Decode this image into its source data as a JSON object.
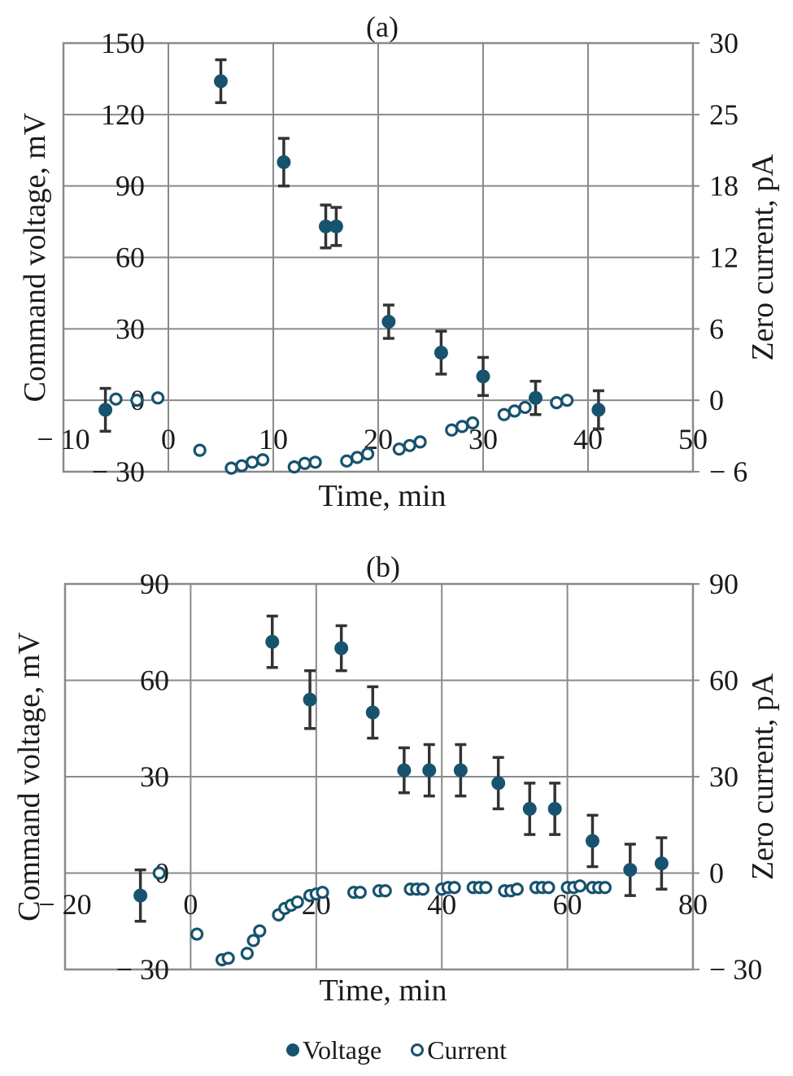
{
  "colors": {
    "voltage": "#17536e",
    "current": "#17536e",
    "grid": "#8a8a8a",
    "errorbar": "#333333"
  },
  "legend": {
    "voltage_label": "Voltage",
    "current_label": "Current"
  },
  "chart_data": [
    {
      "type": "scatter",
      "title": "(a)",
      "xlabel": "Time, min",
      "ylabel": "Command voltage, mV",
      "ylabel_right": "Zero current, pA",
      "xlim": [
        -10,
        50
      ],
      "ylim": [
        -30,
        150
      ],
      "x_ticks": [
        -10,
        0,
        10,
        20,
        30,
        40,
        50
      ],
      "x_tick_labels": [
        "− 10",
        "0",
        "10",
        "20",
        "30",
        "40",
        "50"
      ],
      "y_ticks": [
        150,
        120,
        90,
        60,
        30,
        0,
        -30
      ],
      "y_tick_labels": [
        "150",
        "120",
        "90",
        "60",
        "30",
        "0",
        "− 30"
      ],
      "y_right_tick_labels": [
        "30",
        "25",
        "18",
        "12",
        "6",
        "0",
        "− 6"
      ],
      "y_right_ticks": [
        30,
        25,
        18,
        12,
        6,
        0,
        -6
      ],
      "grid": true,
      "series": [
        {
          "name": "Voltage",
          "marker": "filled-circle",
          "x": [
            -6,
            5,
            11,
            15,
            16,
            21,
            26,
            30,
            35,
            41
          ],
          "y": [
            -4,
            134,
            100,
            73,
            73,
            33,
            20,
            10,
            1,
            -4
          ],
          "err": [
            9,
            9,
            10,
            9,
            8,
            7,
            9,
            8,
            7,
            8
          ]
        },
        {
          "name": "Current",
          "marker": "open-circle",
          "axis": "right",
          "x": [
            -5,
            -3,
            -1,
            3,
            6,
            7,
            8,
            9,
            12,
            13,
            14,
            17,
            18,
            19,
            22,
            23,
            24,
            27,
            28,
            29,
            32,
            33,
            34,
            37,
            38
          ],
          "y": [
            0.1,
            0.0,
            0.2,
            -4.2,
            -5.7,
            -5.5,
            -5.2,
            -5.0,
            -5.6,
            -5.3,
            -5.2,
            -5.1,
            -4.8,
            -4.5,
            -4.1,
            -3.8,
            -3.5,
            -2.5,
            -2.2,
            -1.9,
            -1.2,
            -0.9,
            -0.6,
            -0.2,
            0.0
          ]
        }
      ]
    },
    {
      "type": "scatter",
      "title": "(b)",
      "xlabel": "Time, min",
      "ylabel": "Command voltage, mV",
      "ylabel_right": "Zero current, pA",
      "xlim": [
        -20,
        80
      ],
      "ylim": [
        -30,
        90
      ],
      "x_ticks": [
        -20,
        0,
        20,
        40,
        60,
        80
      ],
      "x_tick_labels": [
        "− 20",
        "0",
        "20",
        "40",
        "60",
        "80"
      ],
      "y_ticks": [
        90,
        60,
        30,
        0,
        -30
      ],
      "y_tick_labels": [
        "90",
        "60",
        "30",
        "0",
        "− 30"
      ],
      "y_right_tick_labels": [
        "90",
        "60",
        "30",
        "0",
        "− 30"
      ],
      "y_right_ticks": [
        90,
        60,
        30,
        0,
        -30
      ],
      "grid": true,
      "series": [
        {
          "name": "Voltage",
          "marker": "filled-circle",
          "x": [
            -8,
            13,
            19,
            24,
            29,
            34,
            38,
            43,
            49,
            54,
            58,
            64,
            70,
            75
          ],
          "y": [
            -7,
            72,
            54,
            70,
            50,
            32,
            32,
            32,
            28,
            20,
            20,
            10,
            1,
            3
          ],
          "err": [
            8,
            8,
            9,
            7,
            8,
            7,
            8,
            8,
            8,
            8,
            8,
            8,
            8,
            8
          ]
        },
        {
          "name": "Current",
          "marker": "open-circle",
          "axis": "right",
          "x": [
            -5,
            1,
            5,
            6,
            9,
            10,
            11,
            14,
            15,
            16,
            17,
            19,
            20,
            21,
            26,
            27,
            30,
            31,
            35,
            36,
            37,
            40,
            41,
            42,
            45,
            46,
            47,
            50,
            51,
            52,
            55,
            56,
            57,
            60,
            61,
            62,
            64,
            65,
            66
          ],
          "y": [
            0,
            -19,
            -27,
            -26.5,
            -25,
            -21,
            -18,
            -13,
            -11,
            -10,
            -9,
            -7,
            -6.5,
            -6,
            -6,
            -6,
            -5.5,
            -5.5,
            -5,
            -5,
            -5,
            -5,
            -4.5,
            -4.5,
            -4.5,
            -4.5,
            -4.5,
            -5.5,
            -5.5,
            -5,
            -4.5,
            -4.5,
            -4.5,
            -4.5,
            -4.5,
            -4,
            -4.5,
            -4.5,
            -4.5
          ]
        }
      ]
    }
  ]
}
